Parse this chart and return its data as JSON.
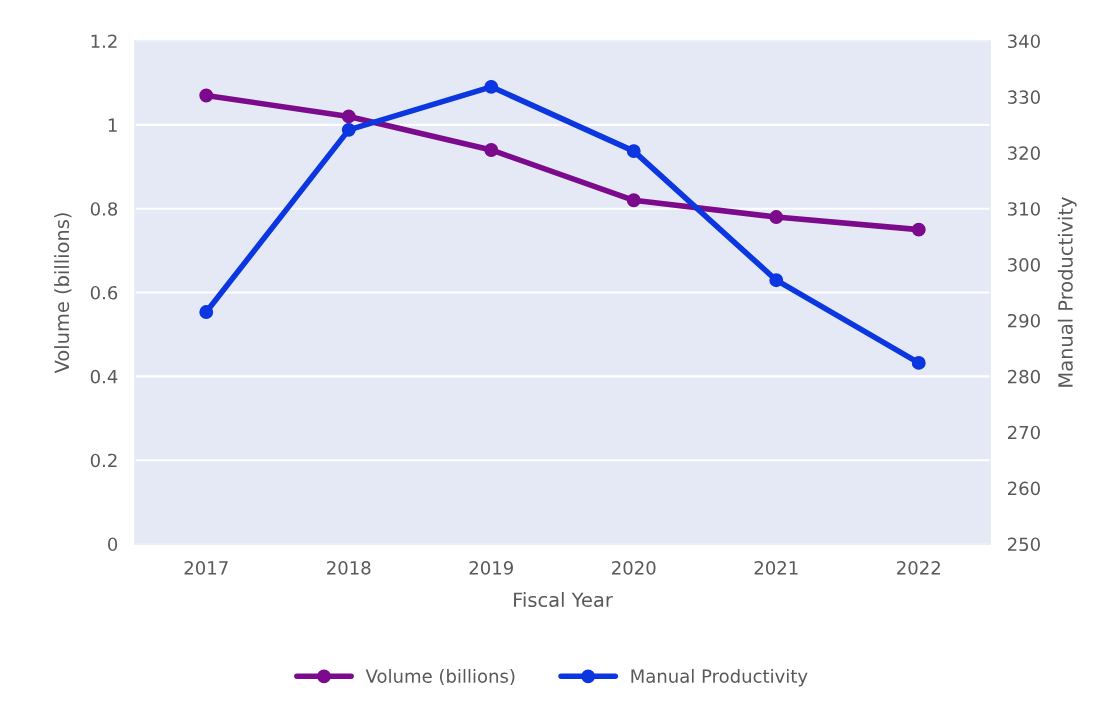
{
  "chart_data": {
    "type": "line",
    "xlabel": "Fiscal Year",
    "ylabel": "Volume (billions)",
    "y2label": "Manual Productivity",
    "categories": [
      "2017",
      "2018",
      "2019",
      "2020",
      "2021",
      "2022"
    ],
    "series": [
      {
        "name": "Volume (billions)",
        "color": "#7b0a8c",
        "values": [
          1.07,
          1.02,
          0.94,
          0.82,
          0.78,
          0.75
        ]
      },
      {
        "name": "Manual Productivity",
        "color": "#0b36e0",
        "axis": "y2",
        "values": [
          291.5,
          324.1,
          331.8,
          320.3,
          297.2,
          282.4
        ]
      }
    ],
    "ylim": [
      0,
      1.2
    ],
    "yticks": [
      0,
      0.2,
      0.4,
      0.6,
      0.8,
      1,
      1.2
    ],
    "y2lim": [
      250,
      340
    ],
    "y2ticks": [
      250,
      260,
      270,
      280,
      290,
      300,
      310,
      320,
      330,
      340
    ],
    "grid": "y",
    "legend": "bottom",
    "marker": "circle",
    "line_style": "solid"
  }
}
